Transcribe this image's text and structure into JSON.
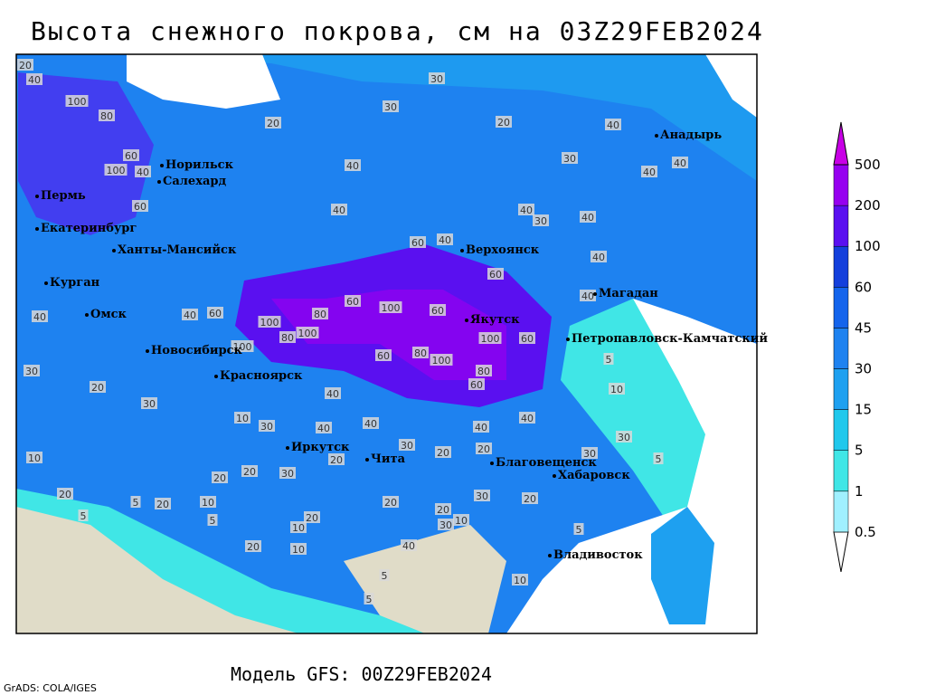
{
  "title": "Высота снежного покрова, см на 03Z29FEB2024",
  "footer": "Модель GFS: 00Z29FEB2024",
  "credit": "GrADS: COLA/IGES",
  "colorbar": {
    "levels": [
      0.5,
      1,
      5,
      15,
      30,
      45,
      60,
      100,
      200,
      500
    ],
    "colors": [
      "#ffffff",
      "#a0f0ff",
      "#40e6e6",
      "#20c8ec",
      "#1ea0f0",
      "#1e82f0",
      "#1464ec",
      "#1440dc",
      "#5a10f0",
      "#9600f0",
      "#c800e6"
    ]
  },
  "cities": [
    "Норильск",
    "Салехард",
    "Пермь",
    "Екатеринбург",
    "Ханты-Мансийск",
    "Курган",
    "Омск",
    "Новосибирск",
    "Красноярск",
    "Иркутск",
    "Чита",
    "Верхоянск",
    "Якутск",
    "Магадан",
    "Анадырь",
    "Петропавловск-Камчатский",
    "Благовещенск",
    "Хабаровск",
    "Владивосток"
  ],
  "contour_labels": [
    20,
    40,
    30,
    30,
    20,
    20,
    100,
    80,
    60,
    100,
    40,
    40,
    30,
    40,
    40,
    40,
    60,
    40,
    40,
    30,
    40,
    60,
    40,
    60,
    40,
    40,
    60,
    100,
    60,
    100,
    80,
    100,
    80,
    60,
    40,
    40,
    30,
    100,
    100,
    80,
    60,
    100,
    60,
    80,
    60,
    5,
    10,
    40,
    30,
    20,
    40,
    40,
    40,
    40,
    30,
    10,
    30,
    20,
    20,
    30,
    30,
    5,
    10,
    20,
    20,
    30,
    20,
    20,
    5,
    20,
    10,
    5,
    20,
    20,
    30,
    20,
    30,
    10,
    20,
    10,
    5,
    10,
    20,
    40,
    5,
    10,
    5,
    5
  ]
}
